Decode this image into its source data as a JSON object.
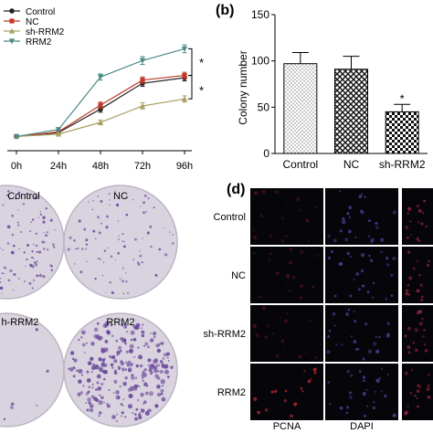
{
  "panel_letters": {
    "b": "(b)",
    "d": "(d)"
  },
  "chart_data": [
    {
      "type": "line",
      "categories": [
        "0h",
        "24h",
        "48h",
        "72h",
        "96h"
      ],
      "series": [
        {
          "name": "Control",
          "values": [
            0.1,
            0.15,
            0.45,
            0.78,
            0.85
          ],
          "err": [
            0.02,
            0.02,
            0.04,
            0.04,
            0.04
          ],
          "color": "#222222",
          "marker": "circle"
        },
        {
          "name": "NC",
          "values": [
            0.1,
            0.16,
            0.5,
            0.82,
            0.88
          ],
          "err": [
            0.02,
            0.02,
            0.04,
            0.04,
            0.04
          ],
          "color": "#c0392b",
          "marker": "square"
        },
        {
          "name": "sh-RRM2",
          "values": [
            0.1,
            0.13,
            0.28,
            0.49,
            0.58
          ],
          "err": [
            0.02,
            0.02,
            0.03,
            0.04,
            0.04
          ],
          "color": "#a8a060",
          "marker": "triangle-up"
        },
        {
          "name": "RRM2",
          "values": [
            0.1,
            0.19,
            0.86,
            1.07,
            1.22
          ],
          "err": [
            0.02,
            0.02,
            0.04,
            0.05,
            0.05
          ],
          "color": "#4a8a88",
          "marker": "triangle-down"
        }
      ],
      "ylim": [
        0,
        1.4
      ],
      "annotations": [
        "*",
        "*"
      ]
    },
    {
      "type": "bar",
      "categories": [
        "Control",
        "NC",
        "sh-RRM2"
      ],
      "values": [
        97,
        91,
        45
      ],
      "err": [
        12,
        14,
        8
      ],
      "patterns": [
        "dots",
        "crosshatch",
        "checker"
      ],
      "ylabel": "Colony  number",
      "ylim": [
        0,
        150
      ],
      "yticks": [
        0,
        50,
        100,
        150
      ],
      "annotations": [
        "*"
      ]
    }
  ],
  "colony_labels": [
    "Control",
    "NC",
    "h-RRM2",
    "RRM2"
  ],
  "fluorescence": {
    "rows": [
      "Control",
      "NC",
      "sh-RRM2",
      "RRM2"
    ],
    "columns": [
      "PCNA",
      "DAPI"
    ]
  },
  "colors": {
    "colony_dish": "#d9d3df",
    "colony_dot": "#6b4a9b",
    "fluor_bg": "#05050a",
    "pcna": "#b52a2e",
    "dapi": "#5a59c9"
  }
}
